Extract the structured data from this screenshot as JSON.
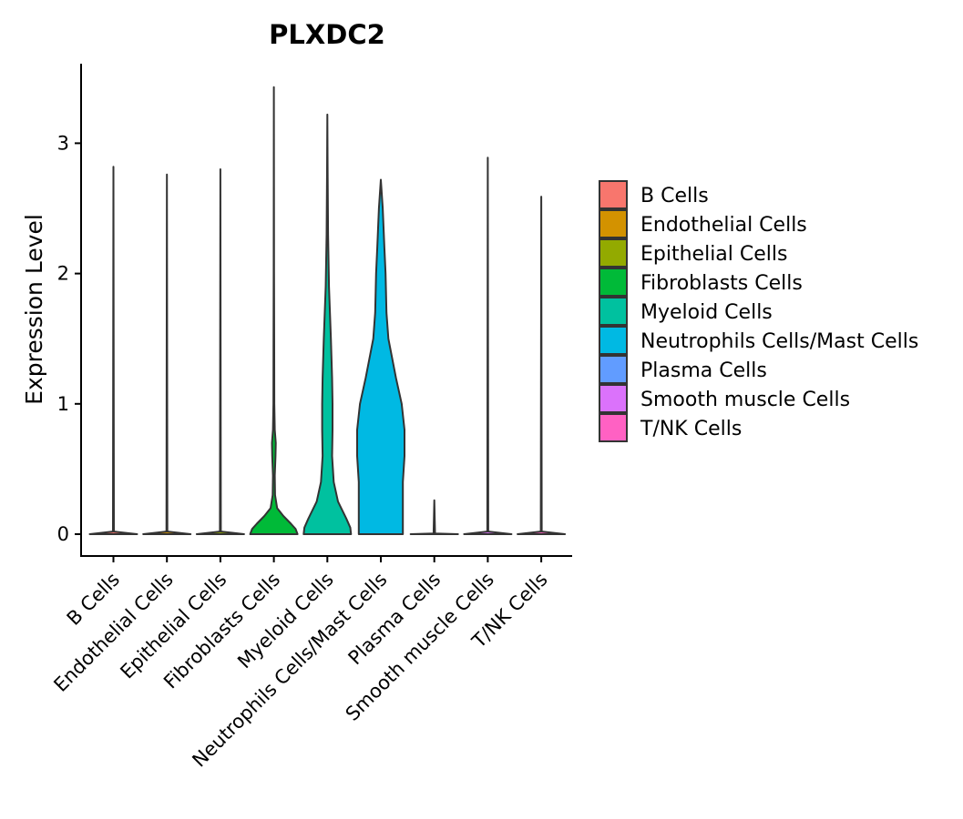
{
  "chart_data": {
    "type": "violin",
    "title": "PLXDC2",
    "xlabel": "",
    "ylabel": "Expression Level",
    "ylim": [
      -0.18,
      3.6
    ],
    "yticks": [
      0,
      1,
      2,
      3
    ],
    "categories": [
      "B Cells",
      "Endothelial Cells",
      "Epithelial Cells",
      "Fibroblasts Cells",
      "Myeloid Cells",
      "Neutrophils Cells/Mast Cells",
      "Plasma Cells",
      "Smooth muscle Cells",
      "T/NK Cells"
    ],
    "colors": [
      "#F8766D",
      "#D39200",
      "#93AA00",
      "#00BA38",
      "#00C19F",
      "#00B9E3",
      "#619CFF",
      "#DB72FB",
      "#FF61C3"
    ],
    "max_values": [
      2.82,
      2.76,
      2.8,
      3.43,
      3.22,
      2.72,
      0.26,
      2.89,
      2.59
    ],
    "density_profiles": [
      [
        [
          0,
          1.0
        ],
        [
          0.02,
          0.02
        ],
        [
          2.82,
          0.0
        ]
      ],
      [
        [
          0,
          1.0
        ],
        [
          0.02,
          0.02
        ],
        [
          2.76,
          0.0
        ]
      ],
      [
        [
          0,
          1.0
        ],
        [
          0.02,
          0.02
        ],
        [
          2.8,
          0.0
        ]
      ],
      [
        [
          0,
          1.0
        ],
        [
          0.04,
          0.92
        ],
        [
          0.08,
          0.72
        ],
        [
          0.14,
          0.4
        ],
        [
          0.2,
          0.14
        ],
        [
          0.3,
          0.05
        ],
        [
          0.45,
          0.04
        ],
        [
          0.6,
          0.07
        ],
        [
          0.7,
          0.08
        ],
        [
          0.8,
          0.04
        ],
        [
          1.0,
          0.02
        ],
        [
          1.4,
          0.015
        ],
        [
          2.0,
          0.008
        ],
        [
          3.43,
          0.0
        ]
      ],
      [
        [
          0,
          1.0
        ],
        [
          0.05,
          0.97
        ],
        [
          0.12,
          0.8
        ],
        [
          0.25,
          0.45
        ],
        [
          0.4,
          0.27
        ],
        [
          0.6,
          0.2
        ],
        [
          0.8,
          0.22
        ],
        [
          1.0,
          0.22
        ],
        [
          1.2,
          0.2
        ],
        [
          1.5,
          0.15
        ],
        [
          1.9,
          0.07
        ],
        [
          2.3,
          0.03
        ],
        [
          2.8,
          0.01
        ],
        [
          3.22,
          0.0
        ]
      ],
      [
        [
          0,
          0.93
        ],
        [
          0.2,
          0.93
        ],
        [
          0.4,
          0.93
        ],
        [
          0.6,
          1.0
        ],
        [
          0.8,
          1.0
        ],
        [
          1.0,
          0.88
        ],
        [
          1.2,
          0.64
        ],
        [
          1.5,
          0.32
        ],
        [
          1.7,
          0.24
        ],
        [
          2.0,
          0.2
        ],
        [
          2.2,
          0.15
        ],
        [
          2.5,
          0.08
        ],
        [
          2.72,
          0.0
        ]
      ],
      [
        [
          0,
          1.0
        ],
        [
          0.005,
          0.03
        ],
        [
          0.26,
          0.0
        ]
      ],
      [
        [
          0,
          1.0
        ],
        [
          0.02,
          0.02
        ],
        [
          2.89,
          0.0
        ]
      ],
      [
        [
          0,
          1.0
        ],
        [
          0.02,
          0.02
        ],
        [
          2.59,
          0.0
        ]
      ]
    ],
    "legend_title": "",
    "legend_position": "right"
  }
}
